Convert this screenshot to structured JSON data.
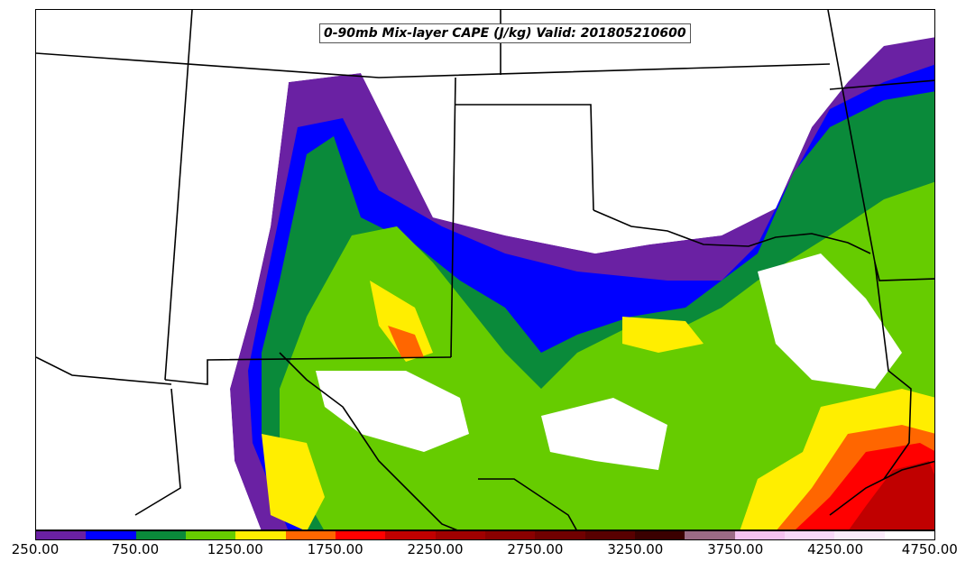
{
  "title": "0-90mb Mix-layer CAPE (J/kg) Valid: 201805210600",
  "colorbar": {
    "colors": [
      "#6a21a3",
      "#0000ff",
      "#0a8a3a",
      "#66cc00",
      "#ffee00",
      "#ff6600",
      "#ff0000",
      "#c00000",
      "#a00000",
      "#8a0000",
      "#700000",
      "#580000",
      "#3a0000",
      "#9b6b85",
      "#f5c2f0",
      "#f8d8f8",
      "#fbecfb",
      "#ffffff"
    ],
    "tick_labels": [
      "250.00",
      "750.00",
      "1250.00",
      "1750.00",
      "2250.00",
      "2750.00",
      "3250.00",
      "3750.00",
      "4250.00",
      "4750.00"
    ]
  }
}
